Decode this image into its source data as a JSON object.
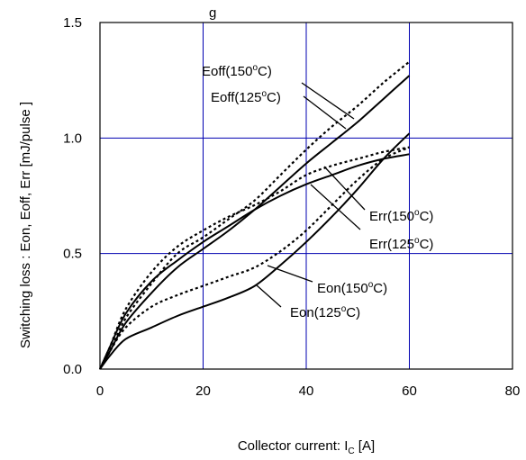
{
  "chart_data": {
    "type": "line",
    "title_fragment": "g",
    "xlabel": {
      "text": "Collector current: I",
      "sub": "C",
      "unit": " [A]"
    },
    "ylabel": "Switching loss  : Eon, Eoff, Err  [mJ/pulse ]",
    "xlim": [
      0,
      80
    ],
    "ylim": [
      0,
      1.5
    ],
    "x_ticks": [
      "0",
      "20",
      "40",
      "60",
      "80"
    ],
    "y_ticks": [
      "0.0",
      "0.5",
      "1.0",
      "1.5"
    ],
    "grid": true,
    "grid_color": "#0000b0",
    "series": [
      {
        "name": "Eoff(150°C)",
        "style": "dashed",
        "x": [
          0,
          2,
          5,
          10,
          15,
          20,
          25,
          30,
          35,
          40,
          45,
          50,
          55,
          60
        ],
        "y": [
          0,
          0.08,
          0.22,
          0.37,
          0.5,
          0.57,
          0.65,
          0.73,
          0.84,
          0.95,
          1.05,
          1.14,
          1.24,
          1.33
        ]
      },
      {
        "name": "Eoff(125°C)",
        "style": "solid",
        "x": [
          0,
          2,
          5,
          10,
          15,
          20,
          25,
          30,
          35,
          40,
          45,
          50,
          55,
          60
        ],
        "y": [
          0,
          0.08,
          0.2,
          0.33,
          0.44,
          0.52,
          0.6,
          0.69,
          0.79,
          0.89,
          0.98,
          1.07,
          1.17,
          1.27
        ]
      },
      {
        "name": "Err(150°C)",
        "style": "dashed",
        "x": [
          0,
          2,
          5,
          10,
          15,
          20,
          25,
          30,
          35,
          40,
          45,
          50,
          55,
          60
        ],
        "y": [
          0,
          0.1,
          0.26,
          0.42,
          0.53,
          0.6,
          0.66,
          0.71,
          0.77,
          0.84,
          0.88,
          0.91,
          0.94,
          0.96
        ]
      },
      {
        "name": "Err(125°C)",
        "style": "solid",
        "x": [
          0,
          2,
          5,
          10,
          15,
          20,
          25,
          30,
          35,
          40,
          45,
          50,
          55,
          60
        ],
        "y": [
          0,
          0.1,
          0.24,
          0.38,
          0.47,
          0.55,
          0.62,
          0.69,
          0.75,
          0.8,
          0.84,
          0.88,
          0.91,
          0.93
        ]
      },
      {
        "name": "Eon(150°C)",
        "style": "dashed",
        "x": [
          0,
          2,
          5,
          10,
          15,
          20,
          25,
          30,
          35,
          40,
          45,
          50,
          55,
          60
        ],
        "y": [
          0,
          0.08,
          0.18,
          0.27,
          0.32,
          0.36,
          0.4,
          0.44,
          0.51,
          0.6,
          0.71,
          0.82,
          0.91,
          0.96
        ]
      },
      {
        "name": "Eon(125°C)",
        "style": "solid",
        "x": [
          0,
          2,
          5,
          10,
          15,
          20,
          25,
          30,
          35,
          40,
          45,
          50,
          55,
          60
        ],
        "y": [
          0,
          0.06,
          0.13,
          0.18,
          0.23,
          0.27,
          0.31,
          0.36,
          0.45,
          0.55,
          0.66,
          0.78,
          0.91,
          1.02
        ]
      }
    ],
    "annotations": [
      {
        "label": "Eoff(150",
        "sup": "o",
        "tail": "C)"
      },
      {
        "label": "Eoff(125",
        "sup": "o",
        "tail": "C)"
      },
      {
        "label": "Err(150",
        "sup": "o",
        "tail": "C)"
      },
      {
        "label": "Err(125",
        "sup": "o",
        "tail": "C)"
      },
      {
        "label": "Eon(150",
        "sup": "o",
        "tail": "C)"
      },
      {
        "label": "Eon(125",
        "sup": "o",
        "tail": "C)"
      }
    ]
  }
}
